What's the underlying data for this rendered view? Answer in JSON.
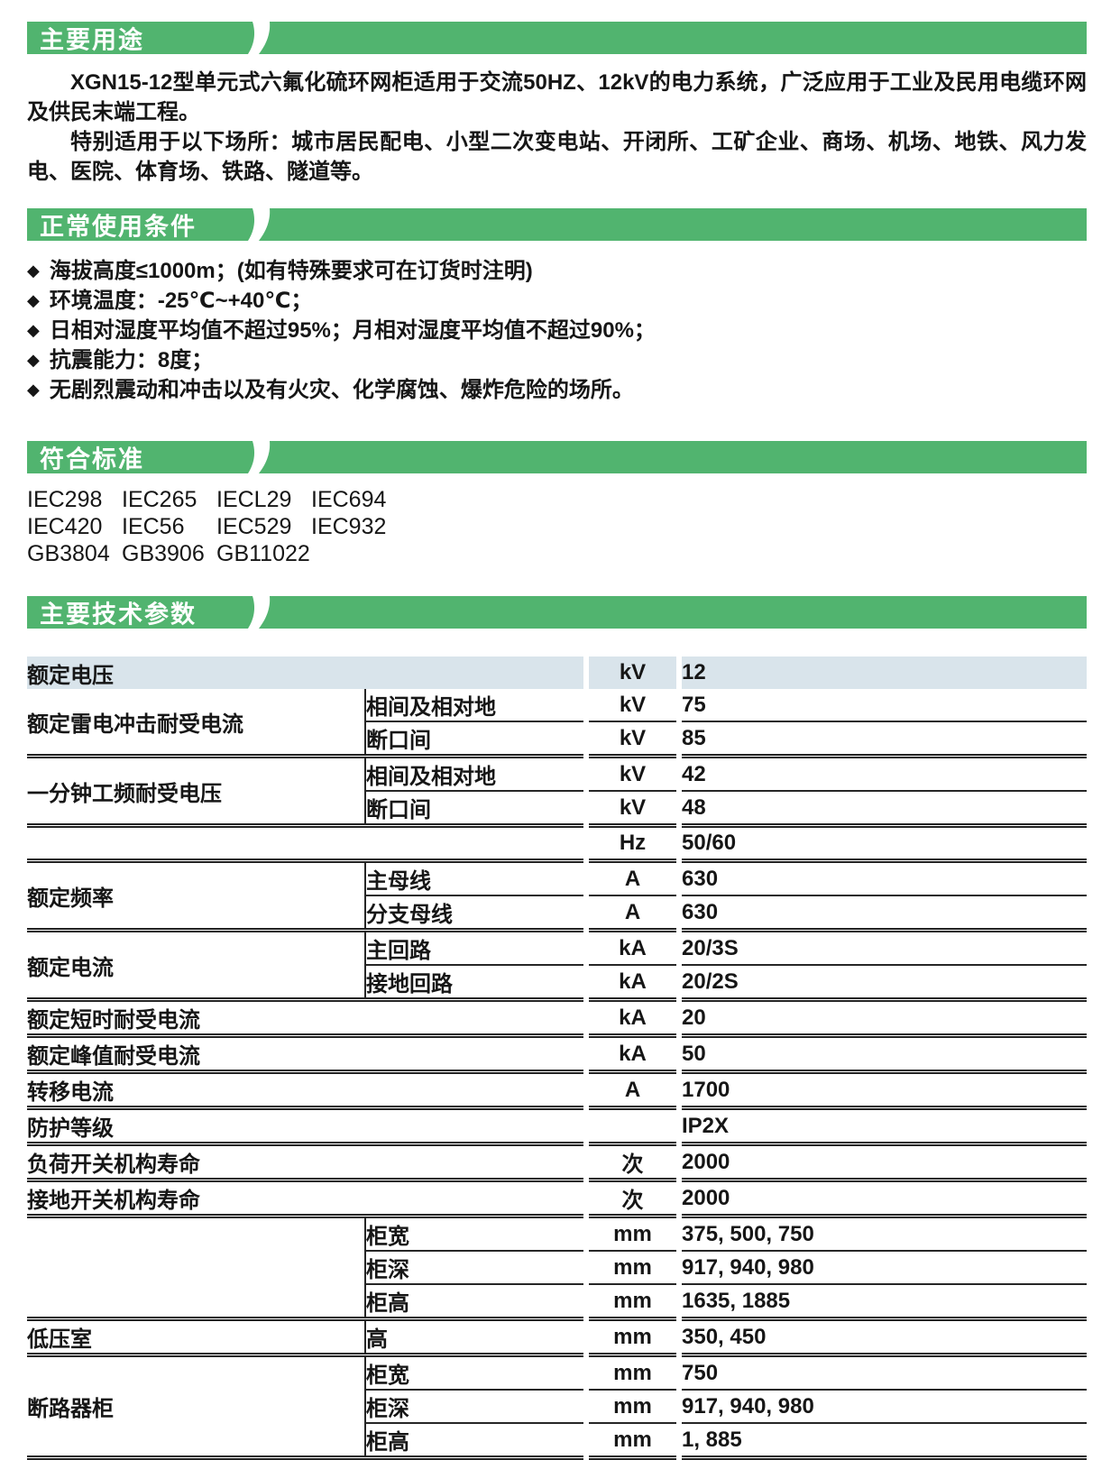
{
  "colors": {
    "banner_green": "#51b46f",
    "banner_text": "#ffffff",
    "table_header_row_bg": "#d9e4eb",
    "table_line": "#262626",
    "body_text": "#161616"
  },
  "sections": {
    "usage": {
      "title": "主要用途",
      "paragraphs": [
        "XGN15-12型单元式六氟化硫环网柜适用于交流50HZ、12kV的电力系统，广泛应用于工业及民用电缆环网及供民末端工程。",
        "特别适用于以下场所：城市居民配电、小型二次变电站、开闭所、工矿企业、商场、机场、地铁、风力发电、医院、体育场、铁路、隧道等。"
      ]
    },
    "conditions": {
      "title": "正常使用条件",
      "bullet_icon": "◆",
      "bullets": [
        "海拔高度≤1000m；(如有特殊要求可在订货时注明)",
        "环境温度：-25℃~+40℃；",
        "日相对湿度平均值不超过95%；月相对湿度平均值不超过90%；",
        "抗震能力：8度；",
        "无剧烈震动和冲击以及有火灾、化学腐蚀、爆炸危险的场所。"
      ]
    },
    "standards": {
      "title": "符合标准",
      "rows": [
        [
          "IEC298",
          "IEC265",
          "IECL29",
          "IEC694"
        ],
        [
          "IEC420",
          "IEC56",
          "IEC529",
          "IEC932"
        ],
        [
          "GB3804",
          "GB3906",
          "GB11022"
        ]
      ]
    },
    "parameters": {
      "title": "主要技术参数",
      "table": {
        "groups": [
          {
            "label": "额定电压",
            "highlight": true,
            "rows": [
              {
                "unit": "kV",
                "value": "12"
              }
            ]
          },
          {
            "label": "额定雷电冲击耐受电流",
            "rows": [
              {
                "sub": "相间及相对地",
                "unit": "kV",
                "value": "75"
              },
              {
                "sub": "断口间",
                "unit": "kV",
                "value": "85"
              }
            ]
          },
          {
            "label": "一分钟工频耐受电压",
            "rows": [
              {
                "sub": "相间及相对地",
                "unit": "kV",
                "value": "42"
              },
              {
                "sub": "断口间",
                "unit": "kV",
                "value": "48"
              }
            ]
          },
          {
            "label": "",
            "rows": [
              {
                "unit": "Hz",
                "value": "50/60"
              }
            ]
          },
          {
            "label": "额定频率",
            "rows": [
              {
                "sub": "主母线",
                "unit": "A",
                "value": "630"
              },
              {
                "sub": "分支母线",
                "unit": "A",
                "value": "630"
              }
            ]
          },
          {
            "label": "额定电流",
            "rows": [
              {
                "sub": "主回路",
                "unit": "kA",
                "value": "20/3S"
              },
              {
                "sub": "接地回路",
                "unit": "kA",
                "value": "20/2S"
              }
            ]
          },
          {
            "label": "额定短时耐受电流",
            "rows": [
              {
                "unit": "kA",
                "value": "20"
              }
            ]
          },
          {
            "label": "额定峰值耐受电流",
            "rows": [
              {
                "unit": "kA",
                "value": "50"
              }
            ]
          },
          {
            "label": "转移电流",
            "rows": [
              {
                "unit": "A",
                "value": "1700"
              }
            ]
          },
          {
            "label": "防护等级",
            "rows": [
              {
                "unit": "",
                "value": "IP2X"
              }
            ]
          },
          {
            "label": "负荷开关机构寿命",
            "rows": [
              {
                "unit": "次",
                "value": "2000"
              }
            ]
          },
          {
            "label": "接地开关机构寿命",
            "rows": [
              {
                "unit": "次",
                "value": "2000"
              }
            ]
          },
          {
            "label": "",
            "rows": [
              {
                "sub": "柜宽",
                "unit": "mm",
                "value": "375, 500, 750"
              },
              {
                "sub": "柜深",
                "unit": "mm",
                "value": "917, 940, 980"
              },
              {
                "sub": "柜高",
                "unit": "mm",
                "value": "1635, 1885"
              }
            ]
          },
          {
            "label": "低压室",
            "rows": [
              {
                "sub": "高",
                "unit": "mm",
                "value": "350, 450"
              }
            ]
          },
          {
            "label": "断路器柜",
            "rows": [
              {
                "sub": "柜宽",
                "unit": "mm",
                "value": "750"
              },
              {
                "sub": "柜深",
                "unit": "mm",
                "value": "917, 940, 980"
              },
              {
                "sub": "柜高",
                "unit": "mm",
                "value": "1, 885"
              }
            ]
          }
        ]
      }
    }
  }
}
